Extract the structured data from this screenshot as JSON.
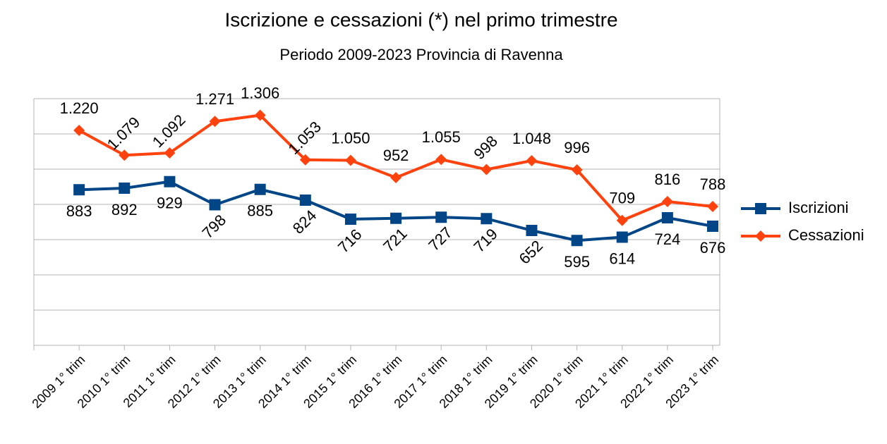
{
  "chart_data": {
    "type": "line",
    "title": "Iscrizione e cessazioni (*) nel primo trimestre",
    "subtitle": "Periodo 2009-2023 Provincia di Ravenna",
    "categories": [
      "2009 1° trim",
      "2010 1° trim",
      "2011 1° trim",
      "2012 1° trim",
      "2013 1° trim",
      "2014 1° trim",
      "2015 1° trim",
      "2016 1° trim",
      "2017 1° trim",
      "2018 1° trim",
      "2019 1° trim",
      "2020 1° trim",
      "2021 1° trim",
      "2022 1° trim",
      "2023 1° trim"
    ],
    "series": [
      {
        "name": "Iscrizioni",
        "color": "#004586",
        "marker": "square",
        "values": [
          883,
          892,
          929,
          798,
          885,
          824,
          716,
          721,
          727,
          719,
          652,
          595,
          614,
          724,
          676
        ]
      },
      {
        "name": "Cessazioni",
        "color": "#ff420e",
        "marker": "diamond",
        "values": [
          1220,
          1079,
          1092,
          1271,
          1306,
          1053,
          1050,
          952,
          1055,
          998,
          1048,
          996,
          709,
          816,
          788
        ],
        "value_labels": [
          "1.220",
          "1.079",
          "1.092",
          "1.271",
          "1.306",
          "1.053",
          "1.050",
          "952",
          "1.055",
          "998",
          "1.048",
          "996",
          "709",
          "816",
          "788"
        ]
      }
    ],
    "ylim": [
      0,
      1400
    ],
    "yticks": [
      0,
      200,
      400,
      600,
      800,
      1000,
      1200,
      1400
    ],
    "ytick_labels_visible": false,
    "grid": true,
    "legend": "right"
  }
}
